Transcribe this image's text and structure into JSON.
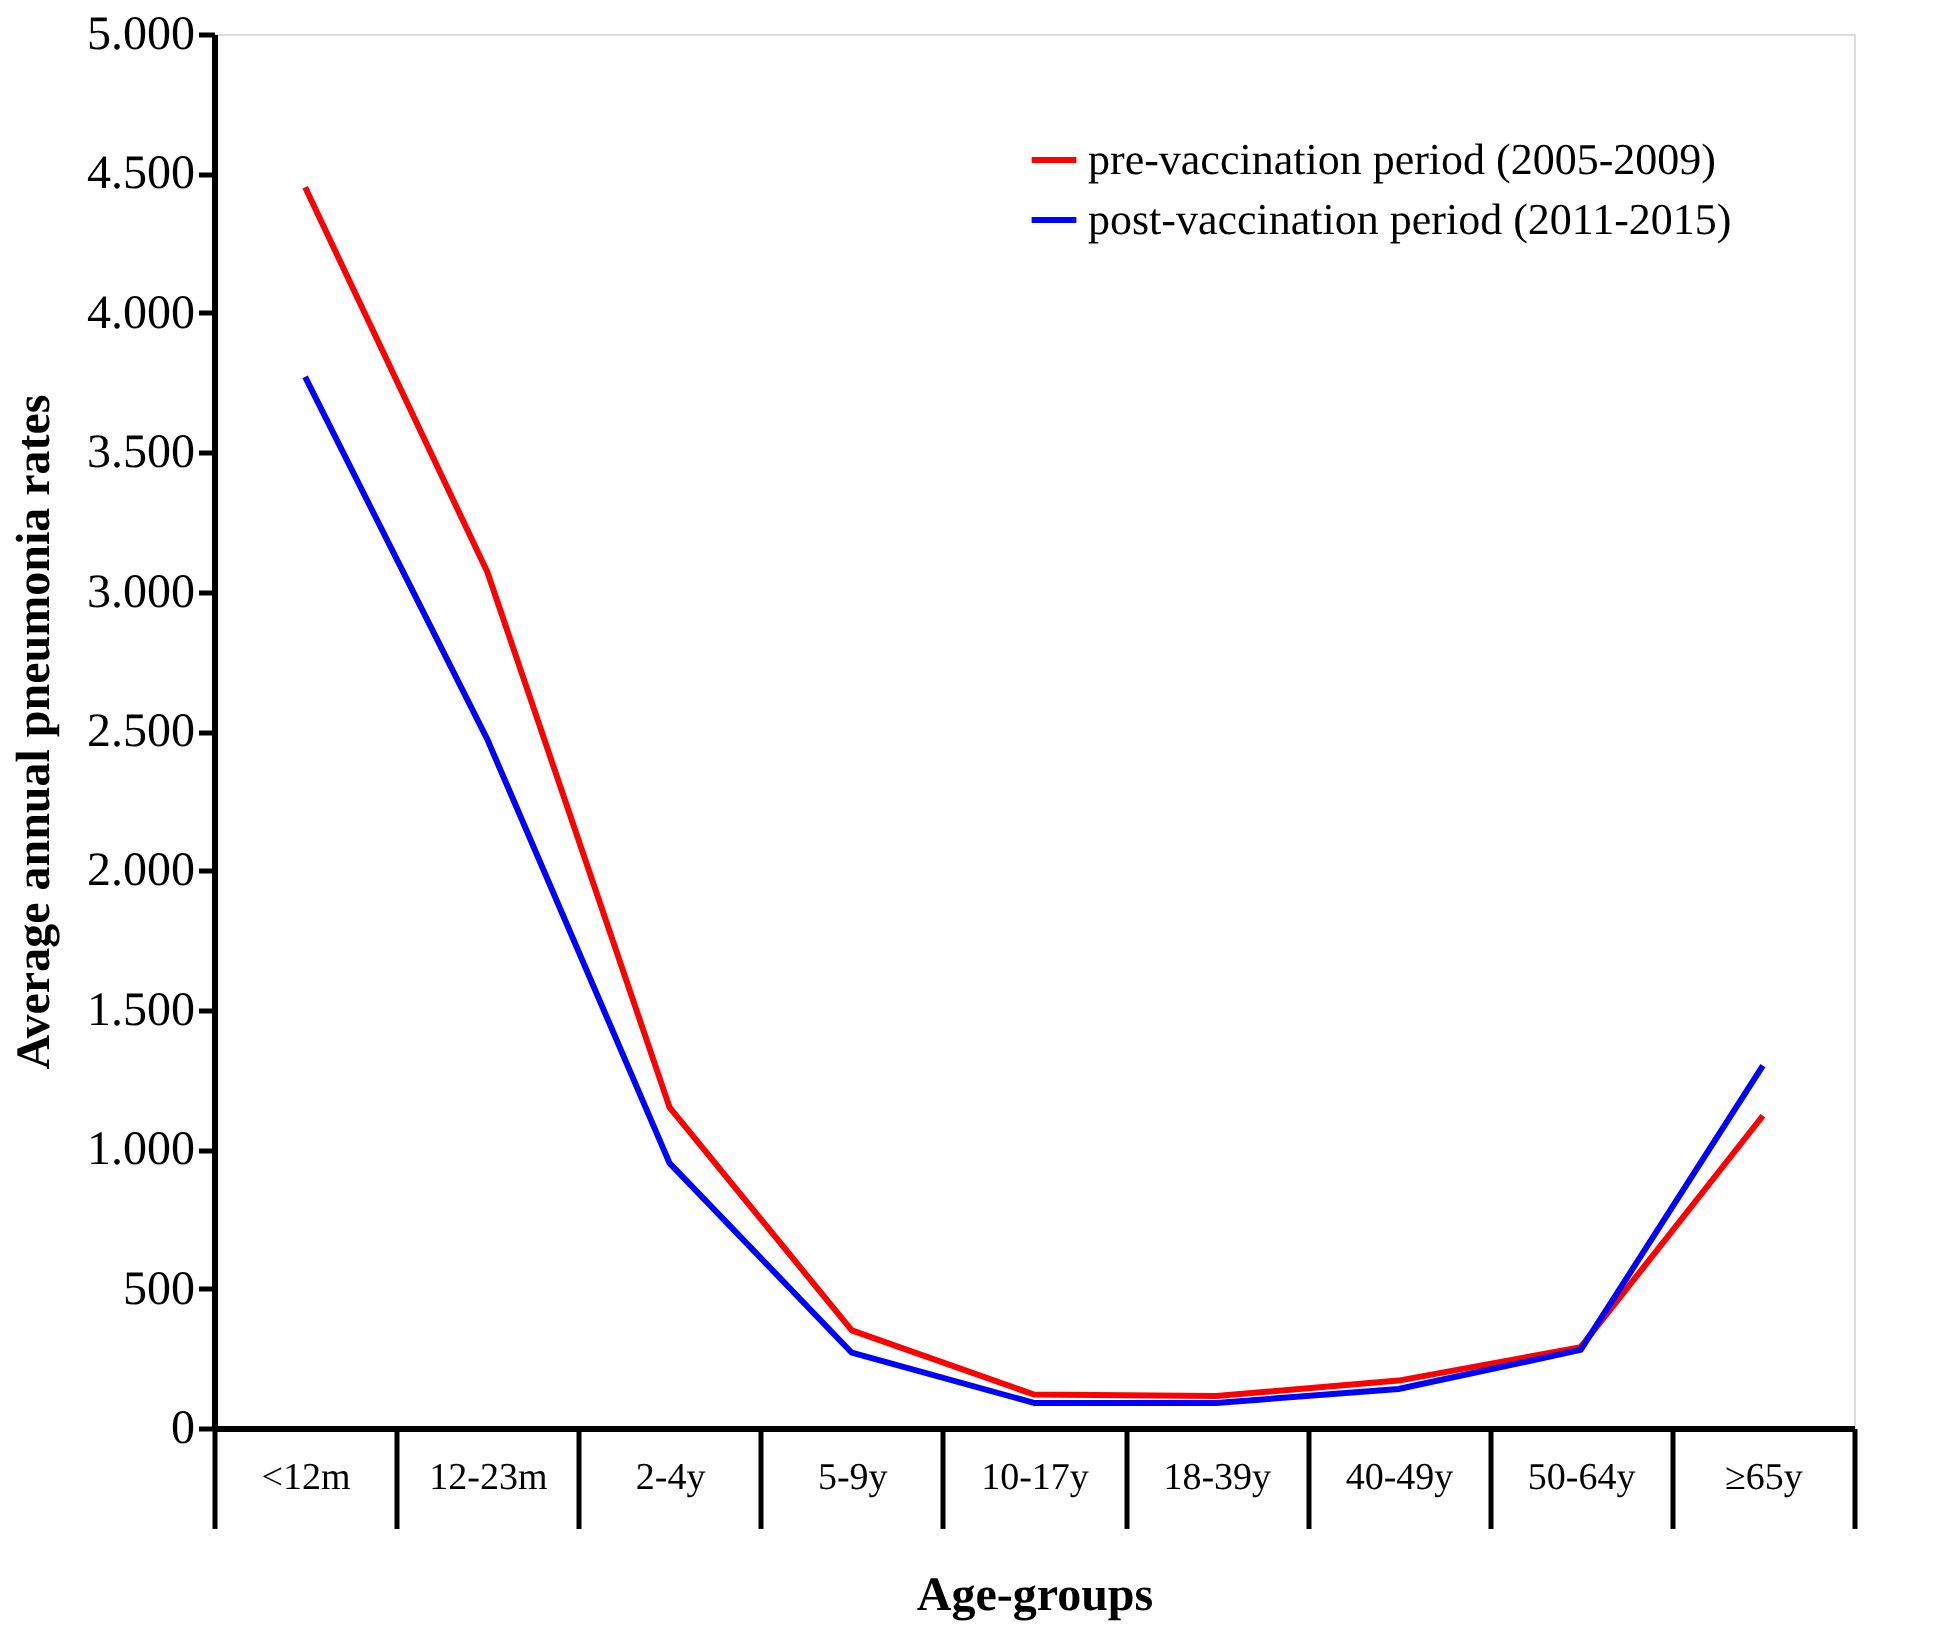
{
  "chart_data": {
    "type": "line",
    "xlabel": "Age-groups",
    "ylabel": "Average annual pneumonia  rates",
    "categories": [
      "<12m",
      "12-23m",
      "2-4y",
      "5-9y",
      "10-17y",
      "18-39y",
      "40-49y",
      "50-64y",
      "≥65y"
    ],
    "series": [
      {
        "name": "pre-vaccination  period  (2005-2009)",
        "color": "#ff0000",
        "values": [
          4450,
          3070,
          1150,
          350,
          120,
          115,
          170,
          290,
          1120
        ]
      },
      {
        "name": "post-vaccination  period  (2011-2015)",
        "color": "#0000ff",
        "values": [
          3770,
          2470,
          950,
          270,
          90,
          90,
          140,
          280,
          1300
        ]
      }
    ],
    "ylim": [
      0,
      5000
    ],
    "yticks": [
      0,
      500,
      {
        "value": 1000,
        "label": "1.000"
      },
      {
        "value": 1500,
        "label": "1.500"
      },
      {
        "value": 2000,
        "label": "2.000"
      },
      {
        "value": 2500,
        "label": "2.500"
      },
      {
        "value": 3000,
        "label": "3.000"
      },
      {
        "value": 3500,
        "label": "3.500"
      },
      {
        "value": 4000,
        "label": "4.000"
      },
      {
        "value": 4500,
        "label": "4.500"
      },
      {
        "value": 5000,
        "label": "5.000"
      }
    ],
    "legend": "top right",
    "grid": false,
    "marker": "none",
    "line_style": "solid"
  }
}
